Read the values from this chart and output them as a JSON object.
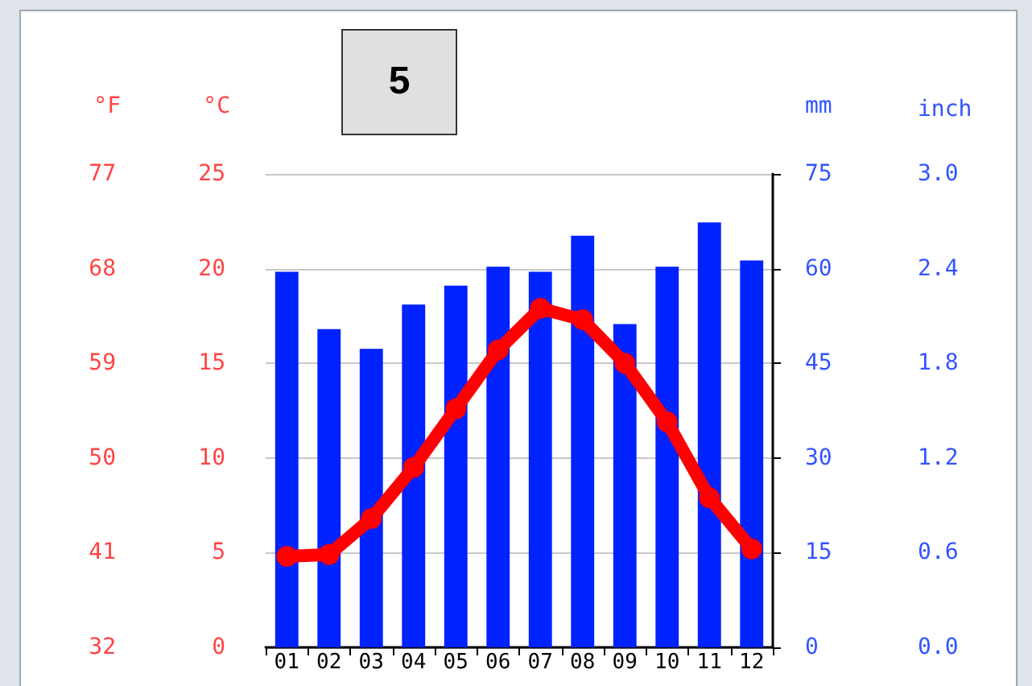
{
  "chart_data": {
    "type": "bar",
    "annotations": [
      "5",
      "inch",
      "0.0",
      "0.6",
      "1.2",
      "1.8",
      "2.4",
      "3.0"
    ],
    "categories": [
      "01",
      "02",
      "03",
      "04",
      "05",
      "06",
      "07",
      "08",
      "09",
      "10",
      "11",
      "12"
    ],
    "series": [
      {
        "type": "bar",
        "axis": "y2",
        "color": "#0022ff",
        "values": [
          59.5,
          50.4,
          47.3,
          54.3,
          57.3,
          60.3,
          59.5,
          65.2,
          51.2,
          60.3,
          67.3,
          61.3
        ]
      },
      {
        "type": "line",
        "axis": "y",
        "color": "#ff0000",
        "values": [
          4.8,
          4.9,
          6.8,
          9.5,
          12.6,
          15.7,
          17.9,
          17.3,
          15.0,
          11.9,
          7.9,
          5.2
        ]
      }
    ],
    "ylabel": "°C",
    "ylim": [
      0,
      25
    ],
    "yticks": [
      0,
      5,
      10,
      15,
      20,
      25
    ],
    "y2label": "mm",
    "y2lim": [
      0,
      75
    ],
    "y2ticks": [
      0,
      15,
      30,
      45,
      60,
      75
    ],
    "y3label": "°F",
    "y3lim": [
      32,
      77
    ],
    "y3ticks": [
      32,
      41,
      50,
      59,
      68,
      77
    ],
    "grid": "y",
    "marker": "circle",
    "line_style": "solid"
  }
}
